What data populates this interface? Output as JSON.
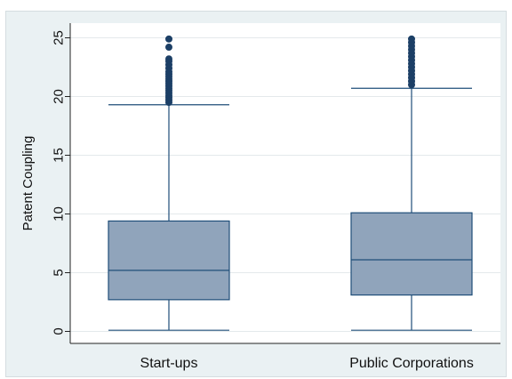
{
  "chart_data": {
    "type": "box",
    "ylabel": "Patent Coupling",
    "xlabel": "",
    "ylim": [
      0,
      26
    ],
    "yticks": [
      0,
      5,
      10,
      15,
      20,
      25
    ],
    "grid": true,
    "categories": [
      "Start-ups",
      "Public Corporations"
    ],
    "boxes": [
      {
        "category": "Start-ups",
        "whisker_low": 0.1,
        "q1": 2.7,
        "median": 5.2,
        "q3": 9.4,
        "whisker_high": 19.3,
        "outliers": [
          19.5,
          19.7,
          19.9,
          20.1,
          20.3,
          20.5,
          20.7,
          20.9,
          21.1,
          21.3,
          21.5,
          21.7,
          21.9,
          22.1,
          22.4,
          22.7,
          23.0,
          23.2,
          24.2,
          24.9
        ]
      },
      {
        "category": "Public Corporations",
        "whisker_low": 0.1,
        "q1": 3.1,
        "median": 6.1,
        "q3": 10.1,
        "whisker_high": 20.7,
        "outliers": [
          21.0,
          21.3,
          21.6,
          21.9,
          22.2,
          22.5,
          22.8,
          23.1,
          23.4,
          23.7,
          24.0,
          24.3,
          24.6,
          24.9
        ]
      }
    ],
    "colors": {
      "box_fill": "#90a4bb",
      "box_stroke": "#1f4e79",
      "outlier": "#1c3f66",
      "gridline": "#e4e9eb",
      "plot_bg": "#ffffff",
      "frame_bg": "#eaf1f3"
    }
  }
}
